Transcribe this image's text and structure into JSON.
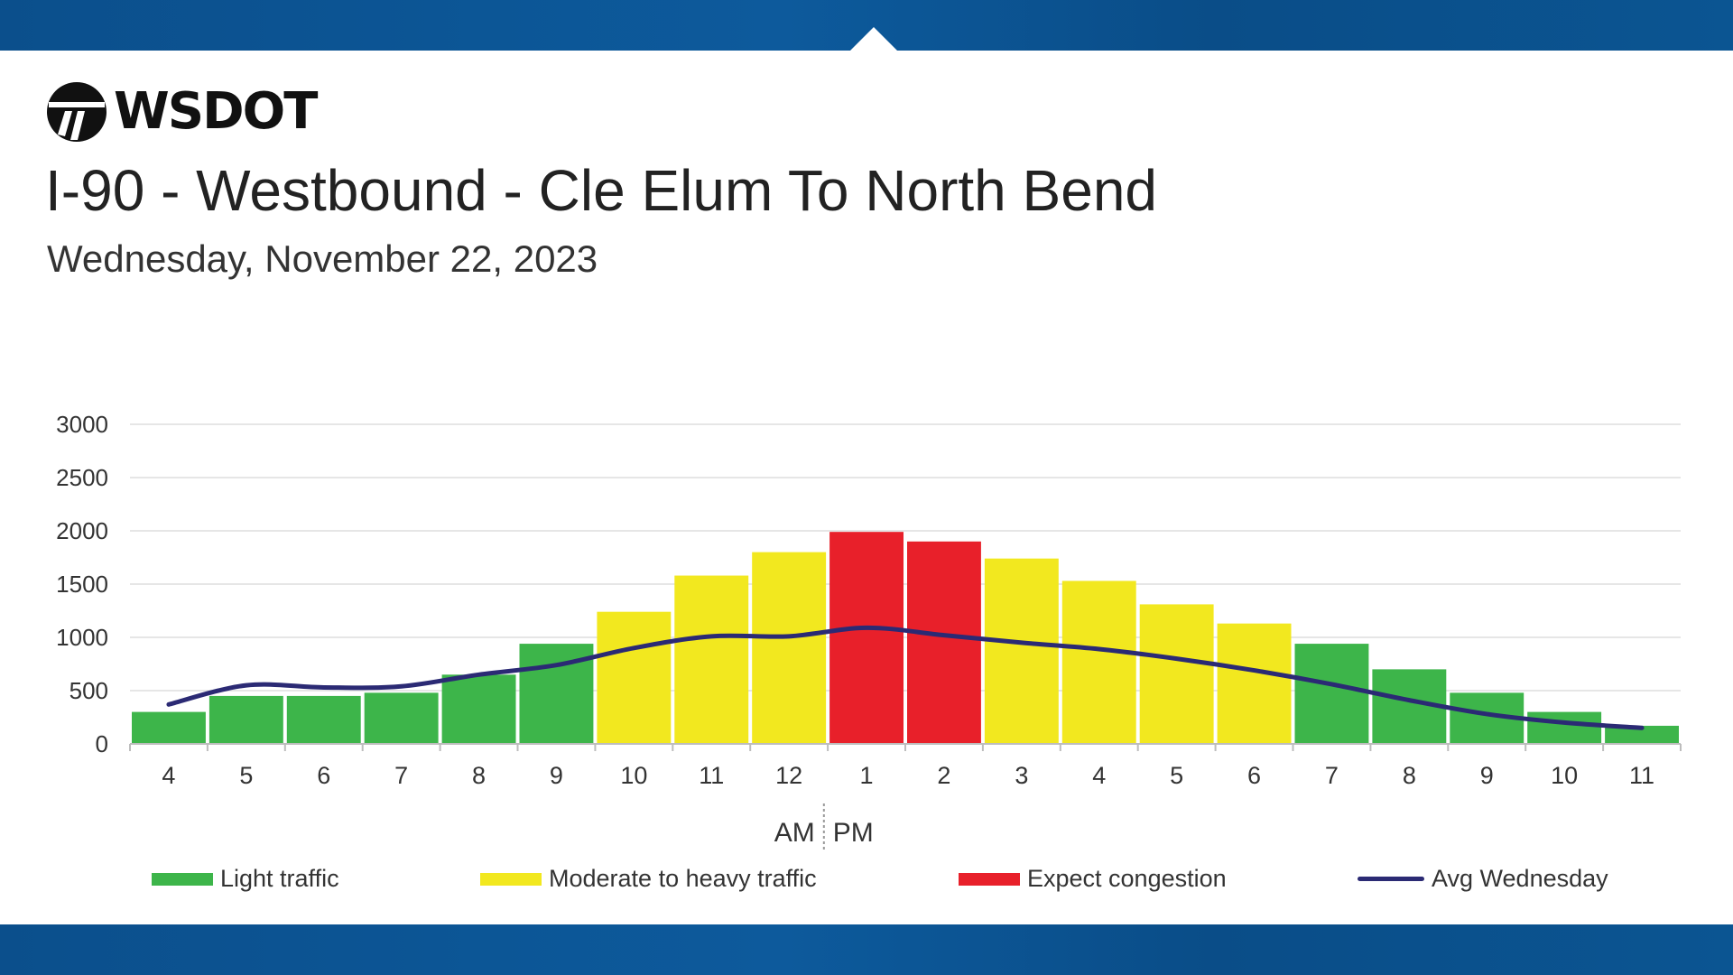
{
  "header": {
    "logo_text": "WSDOT",
    "title": "I-90 - Westbound - Cle Elum To North Bend",
    "subtitle": "Wednesday, November 22, 2023"
  },
  "colors": {
    "light": "#3db54a",
    "moderate": "#f2e81f",
    "congestion": "#e8202a",
    "avg_line": "#2b2a74",
    "band": "#0b4f8c"
  },
  "legend": {
    "light": "Light traffic",
    "moderate": "Moderate to heavy traffic",
    "congestion": "Expect congestion",
    "avg": "Avg Wednesday"
  },
  "chart_data": {
    "type": "bar",
    "title": "I-90 - Westbound - Cle Elum To North Bend",
    "categories": [
      "4",
      "5",
      "6",
      "7",
      "8",
      "9",
      "10",
      "11",
      "12",
      "1",
      "2",
      "3",
      "4",
      "5",
      "6",
      "7",
      "8",
      "9",
      "10",
      "11"
    ],
    "values": [
      300,
      450,
      450,
      480,
      650,
      940,
      1240,
      1580,
      1800,
      1990,
      1900,
      1740,
      1530,
      1310,
      1130,
      940,
      700,
      480,
      300,
      170
    ],
    "levels": [
      "light",
      "light",
      "light",
      "light",
      "light",
      "light",
      "moderate",
      "moderate",
      "moderate",
      "congestion",
      "congestion",
      "moderate",
      "moderate",
      "moderate",
      "moderate",
      "light",
      "light",
      "light",
      "light",
      "light"
    ],
    "series": [
      {
        "name": "Avg Wednesday",
        "type": "line",
        "values": [
          370,
          550,
          530,
          540,
          650,
          740,
          900,
          1010,
          1010,
          1090,
          1020,
          950,
          890,
          800,
          690,
          560,
          410,
          280,
          200,
          150
        ]
      }
    ],
    "yticks": [
      0,
      500,
      1000,
      1500,
      2000,
      2500,
      3000
    ],
    "ylim": [
      0,
      3000
    ],
    "xlabel_am": "AM",
    "xlabel_pm": "PM",
    "grid": true,
    "legend_position": "bottom"
  }
}
